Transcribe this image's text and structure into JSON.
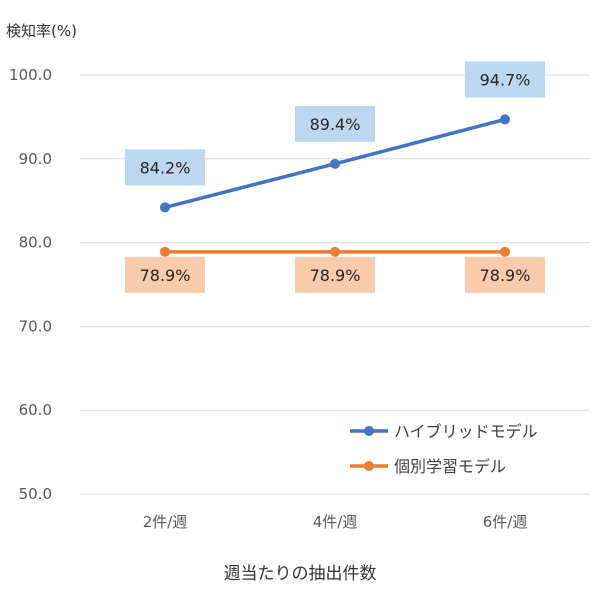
{
  "chart_data": {
    "type": "line",
    "ylabel": "検知率(%)",
    "xlabel": "週当たりの抽出件数",
    "categories": [
      "2件/週",
      "4件/週",
      "6件/週"
    ],
    "ylim": [
      50,
      100
    ],
    "yticks": [
      "50.0",
      "60.0",
      "70.0",
      "80.0",
      "90.0",
      "100.0"
    ],
    "grid": true,
    "legend_position": "bottom-right",
    "series": [
      {
        "name": "ハイブリッドモデル",
        "values": [
          84.2,
          89.4,
          94.7
        ],
        "labels": [
          "84.2%",
          "89.4%",
          "94.7%"
        ],
        "color": "#4472C4",
        "label_bg": "#BDD7EE"
      },
      {
        "name": "個別学習モデル",
        "values": [
          78.9,
          78.9,
          78.9
        ],
        "labels": [
          "78.9%",
          "78.9%",
          "78.9%"
        ],
        "color": "#ED7D31",
        "label_bg": "#F8CBAD"
      }
    ]
  }
}
